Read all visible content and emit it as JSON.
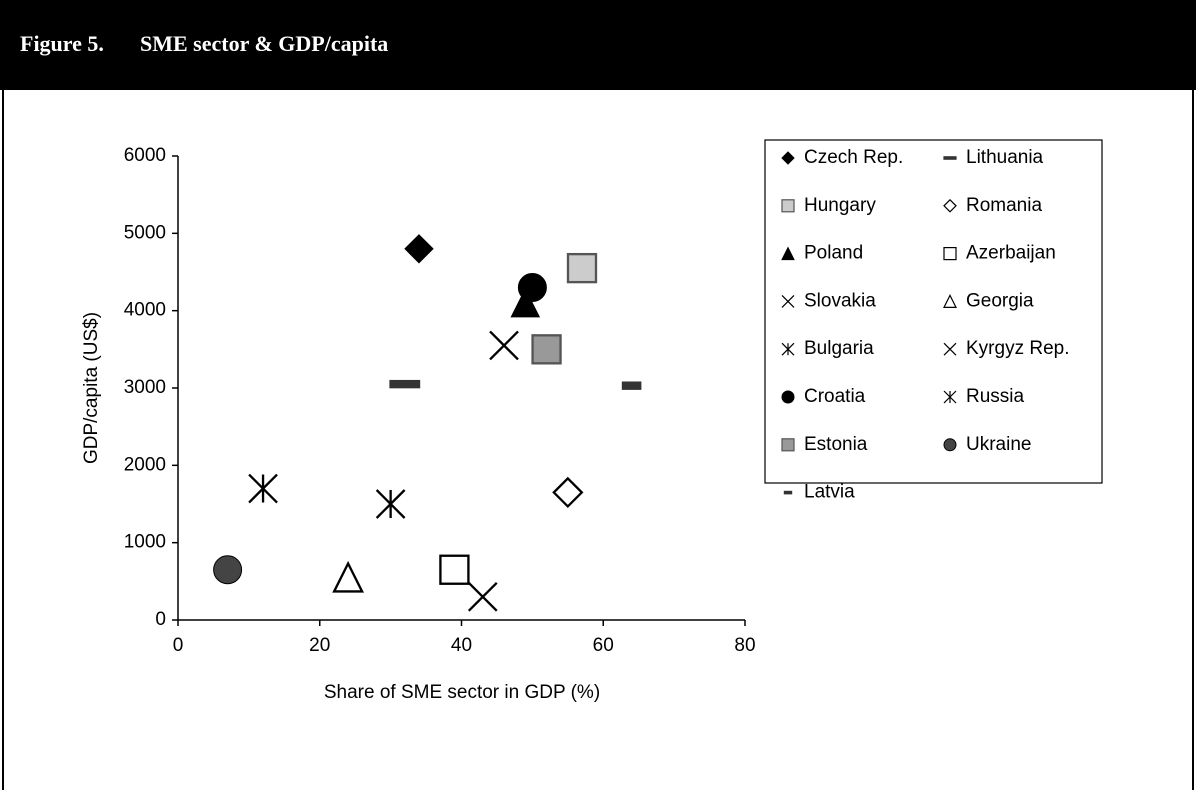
{
  "chart_data": {
    "type": "scatter",
    "label": "Figure 5.",
    "title": "SME sector & GDP/capita",
    "xlabel": "Share of SME sector in GDP (%)",
    "ylabel": "GDP/capita (US$)",
    "xlim": [
      0,
      80
    ],
    "xticks": [
      0,
      20,
      40,
      60,
      80
    ],
    "ylim": [
      0,
      6000
    ],
    "yticks": [
      0,
      1000,
      2000,
      3000,
      4000,
      5000,
      6000
    ],
    "grid": false,
    "legend": "right",
    "series": [
      {
        "name": "Czech Rep.",
        "marker": "diamond",
        "color": "#000000",
        "x": [
          34
        ],
        "values": [
          4800
        ]
      },
      {
        "name": "Lithuania",
        "marker": "bar-wide",
        "color": "#333333",
        "x": [
          32
        ],
        "values": [
          3050
        ]
      },
      {
        "name": "Hungary",
        "marker": "square",
        "color": "#cccccc",
        "x": [
          57
        ],
        "values": [
          4550
        ]
      },
      {
        "name": "Romania",
        "marker": "diamond-open",
        "color": "#000000",
        "x": [
          55
        ],
        "values": [
          1650
        ]
      },
      {
        "name": "Poland",
        "marker": "triangle",
        "color": "#000000",
        "x": [
          49
        ],
        "values": [
          4100
        ]
      },
      {
        "name": "Azerbaijan",
        "marker": "square-open",
        "color": "#000000",
        "x": [
          39
        ],
        "values": [
          650
        ]
      },
      {
        "name": "Slovakia",
        "marker": "x",
        "color": "#000000",
        "x": [
          46
        ],
        "values": [
          3550
        ]
      },
      {
        "name": "Georgia",
        "marker": "triangle-open",
        "color": "#000000",
        "x": [
          24
        ],
        "values": [
          550
        ]
      },
      {
        "name": "Bulgaria",
        "marker": "asterisk",
        "color": "#000000",
        "x": [
          30
        ],
        "values": [
          1500
        ]
      },
      {
        "name": "Kyrgyz Rep.",
        "marker": "x",
        "color": "#000000",
        "x": [
          43
        ],
        "values": [
          300
        ]
      },
      {
        "name": "Croatia",
        "marker": "circle",
        "color": "#000000",
        "x": [
          50
        ],
        "values": [
          4300
        ]
      },
      {
        "name": "Russia",
        "marker": "asterisk",
        "color": "#000000",
        "x": [
          12
        ],
        "values": [
          1700
        ]
      },
      {
        "name": "Estonia",
        "marker": "square-plus",
        "color": "#999999",
        "x": [
          52
        ],
        "values": [
          3500
        ]
      },
      {
        "name": "Ukraine",
        "marker": "circle",
        "color": "#444444",
        "x": [
          7
        ],
        "values": [
          650
        ]
      },
      {
        "name": "Latvia",
        "marker": "bar",
        "color": "#333333",
        "x": [
          64
        ],
        "values": [
          3030
        ]
      }
    ]
  }
}
